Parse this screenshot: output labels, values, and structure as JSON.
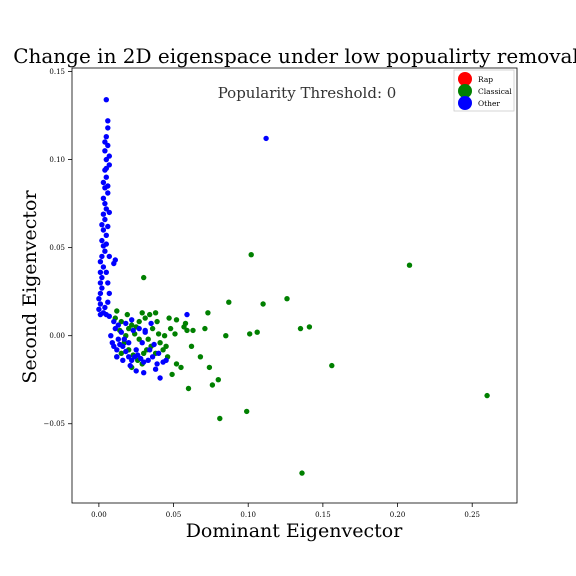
{
  "chart_data": {
    "type": "scatter",
    "title": "Change in 2D eigenspace under low popualirty removal",
    "annotation": "Popularity Threshold: 0",
    "xlabel": "Dominant Eigenvector",
    "ylabel": "Second Eigenvector",
    "xlim": [
      -0.018,
      0.28
    ],
    "ylim": [
      -0.095,
      0.152
    ],
    "xticks": [
      0.0,
      0.05,
      0.1,
      0.15,
      0.2,
      0.25
    ],
    "xtick_labels": [
      "0.00",
      "0.05",
      "0.10",
      "0.15",
      "0.20",
      "0.25"
    ],
    "yticks": [
      -0.05,
      0.0,
      0.05,
      0.1,
      0.15
    ],
    "ytick_labels": [
      "−0.05",
      "0.00",
      "0.05",
      "0.10",
      "0.15"
    ],
    "grid": false,
    "legend_position": "top-right",
    "series": [
      {
        "name": "Rap",
        "color": "#ff0000",
        "points": []
      },
      {
        "name": "Classical",
        "color": "#008000",
        "points": [
          [
            0.03,
            0.033
          ],
          [
            0.102,
            0.046
          ],
          [
            0.208,
            0.04
          ],
          [
            0.26,
            -0.034
          ],
          [
            0.136,
            -0.078
          ],
          [
            0.126,
            0.021
          ],
          [
            0.11,
            0.018
          ],
          [
            0.141,
            0.005
          ],
          [
            0.135,
            0.004
          ],
          [
            0.106,
            0.002
          ],
          [
            0.101,
            0.001
          ],
          [
            0.085,
            0.0
          ],
          [
            0.156,
            -0.017
          ],
          [
            0.099,
            -0.043
          ],
          [
            0.08,
            -0.025
          ],
          [
            0.076,
            -0.028
          ],
          [
            0.087,
            0.019
          ],
          [
            0.073,
            0.013
          ],
          [
            0.071,
            0.004
          ],
          [
            0.063,
            0.003
          ],
          [
            0.057,
            0.005
          ],
          [
            0.059,
            0.003
          ],
          [
            0.058,
            0.007
          ],
          [
            0.052,
            0.009
          ],
          [
            0.047,
            0.01
          ],
          [
            0.048,
            0.004
          ],
          [
            0.044,
            0.0
          ],
          [
            0.04,
            0.001
          ],
          [
            0.041,
            -0.004
          ],
          [
            0.043,
            -0.008
          ],
          [
            0.038,
            -0.01
          ],
          [
            0.035,
            -0.006
          ],
          [
            0.032,
            -0.008
          ],
          [
            0.03,
            -0.01
          ],
          [
            0.046,
            -0.012
          ],
          [
            0.049,
            -0.022
          ],
          [
            0.06,
            -0.03
          ],
          [
            0.068,
            -0.012
          ],
          [
            0.052,
            -0.016
          ],
          [
            0.055,
            -0.018
          ],
          [
            0.074,
            -0.018
          ],
          [
            0.081,
            -0.047
          ],
          [
            0.038,
            0.013
          ],
          [
            0.034,
            0.012
          ],
          [
            0.029,
            0.013
          ],
          [
            0.031,
            0.01
          ],
          [
            0.027,
            0.008
          ],
          [
            0.025,
            0.005
          ],
          [
            0.022,
            0.006
          ],
          [
            0.02,
            0.004
          ],
          [
            0.024,
            0.001
          ],
          [
            0.027,
            -0.002
          ],
          [
            0.033,
            -0.002
          ],
          [
            0.036,
            0.004
          ],
          [
            0.019,
            0.012
          ],
          [
            0.015,
            0.008
          ],
          [
            0.014,
            0.003
          ],
          [
            0.011,
            0.01
          ],
          [
            0.012,
            0.014
          ],
          [
            0.017,
            -0.004
          ],
          [
            0.02,
            -0.008
          ],
          [
            0.023,
            -0.011
          ],
          [
            0.026,
            -0.014
          ],
          [
            0.029,
            -0.016
          ],
          [
            0.015,
            -0.01
          ],
          [
            0.012,
            -0.012
          ],
          [
            0.022,
            -0.018
          ],
          [
            0.045,
            -0.006
          ],
          [
            0.062,
            -0.006
          ],
          [
            0.051,
            0.001
          ],
          [
            0.039,
            0.008
          ],
          [
            0.018,
            0.0
          ]
        ]
      },
      {
        "name": "Other",
        "color": "#0000ff",
        "points": [
          [
            0.112,
            0.112
          ],
          [
            0.005,
            0.134
          ],
          [
            0.006,
            0.122
          ],
          [
            0.006,
            0.118
          ],
          [
            0.005,
            0.113
          ],
          [
            0.006,
            0.108
          ],
          [
            0.004,
            0.105
          ],
          [
            0.005,
            0.1
          ],
          [
            0.007,
            0.097
          ],
          [
            0.004,
            0.094
          ],
          [
            0.005,
            0.09
          ],
          [
            0.003,
            0.087
          ],
          [
            0.004,
            0.084
          ],
          [
            0.006,
            0.081
          ],
          [
            0.003,
            0.078
          ],
          [
            0.004,
            0.075
          ],
          [
            0.005,
            0.072
          ],
          [
            0.003,
            0.069
          ],
          [
            0.004,
            0.066
          ],
          [
            0.002,
            0.063
          ],
          [
            0.003,
            0.06
          ],
          [
            0.005,
            0.057
          ],
          [
            0.002,
            0.054
          ],
          [
            0.003,
            0.051
          ],
          [
            0.004,
            0.048
          ],
          [
            0.002,
            0.045
          ],
          [
            0.001,
            0.042
          ],
          [
            0.011,
            0.043
          ],
          [
            0.01,
            0.041
          ],
          [
            0.003,
            0.039
          ],
          [
            0.001,
            0.036
          ],
          [
            0.002,
            0.033
          ],
          [
            0.001,
            0.03
          ],
          [
            0.002,
            0.027
          ],
          [
            0.001,
            0.024
          ],
          [
            0.0,
            0.021
          ],
          [
            0.001,
            0.018
          ],
          [
            0.0,
            0.015
          ],
          [
            0.001,
            0.012
          ],
          [
            0.003,
            0.013
          ],
          [
            0.005,
            0.012
          ],
          [
            0.007,
            0.011
          ],
          [
            0.004,
            0.016
          ],
          [
            0.006,
            0.019
          ],
          [
            0.007,
            0.024
          ],
          [
            0.006,
            0.03
          ],
          [
            0.005,
            0.036
          ],
          [
            0.007,
            0.045
          ],
          [
            0.005,
            0.052
          ],
          [
            0.006,
            0.062
          ],
          [
            0.007,
            0.07
          ],
          [
            0.006,
            0.085
          ],
          [
            0.005,
            0.095
          ],
          [
            0.007,
            0.102
          ],
          [
            0.004,
            0.11
          ],
          [
            0.008,
            0.0
          ],
          [
            0.009,
            -0.004
          ],
          [
            0.01,
            -0.006
          ],
          [
            0.012,
            -0.008
          ],
          [
            0.013,
            -0.002
          ],
          [
            0.014,
            -0.005
          ],
          [
            0.016,
            -0.006
          ],
          [
            0.018,
            -0.009
          ],
          [
            0.02,
            -0.012
          ],
          [
            0.022,
            -0.014
          ],
          [
            0.024,
            -0.012
          ],
          [
            0.026,
            -0.011
          ],
          [
            0.028,
            -0.013
          ],
          [
            0.03,
            -0.015
          ],
          [
            0.033,
            -0.014
          ],
          [
            0.036,
            -0.012
          ],
          [
            0.039,
            -0.016
          ],
          [
            0.043,
            -0.015
          ],
          [
            0.025,
            -0.008
          ],
          [
            0.02,
            -0.004
          ],
          [
            0.017,
            -0.002
          ],
          [
            0.015,
            0.002
          ],
          [
            0.011,
            0.004
          ],
          [
            0.01,
            0.008
          ],
          [
            0.013,
            0.006
          ],
          [
            0.018,
            0.007
          ],
          [
            0.023,
            0.003
          ],
          [
            0.027,
            0.004
          ],
          [
            0.031,
            0.002
          ],
          [
            0.029,
            -0.004
          ],
          [
            0.034,
            -0.008
          ],
          [
            0.037,
            -0.005
          ],
          [
            0.04,
            -0.01
          ],
          [
            0.045,
            -0.014
          ],
          [
            0.025,
            -0.02
          ],
          [
            0.038,
            -0.019
          ],
          [
            0.03,
            -0.021
          ],
          [
            0.041,
            -0.024
          ],
          [
            0.059,
            0.012
          ],
          [
            0.031,
            0.003
          ],
          [
            0.022,
            0.009
          ],
          [
            0.012,
            -0.012
          ],
          [
            0.016,
            -0.014
          ],
          [
            0.021,
            -0.017
          ],
          [
            0.035,
            0.007
          ]
        ]
      }
    ]
  }
}
